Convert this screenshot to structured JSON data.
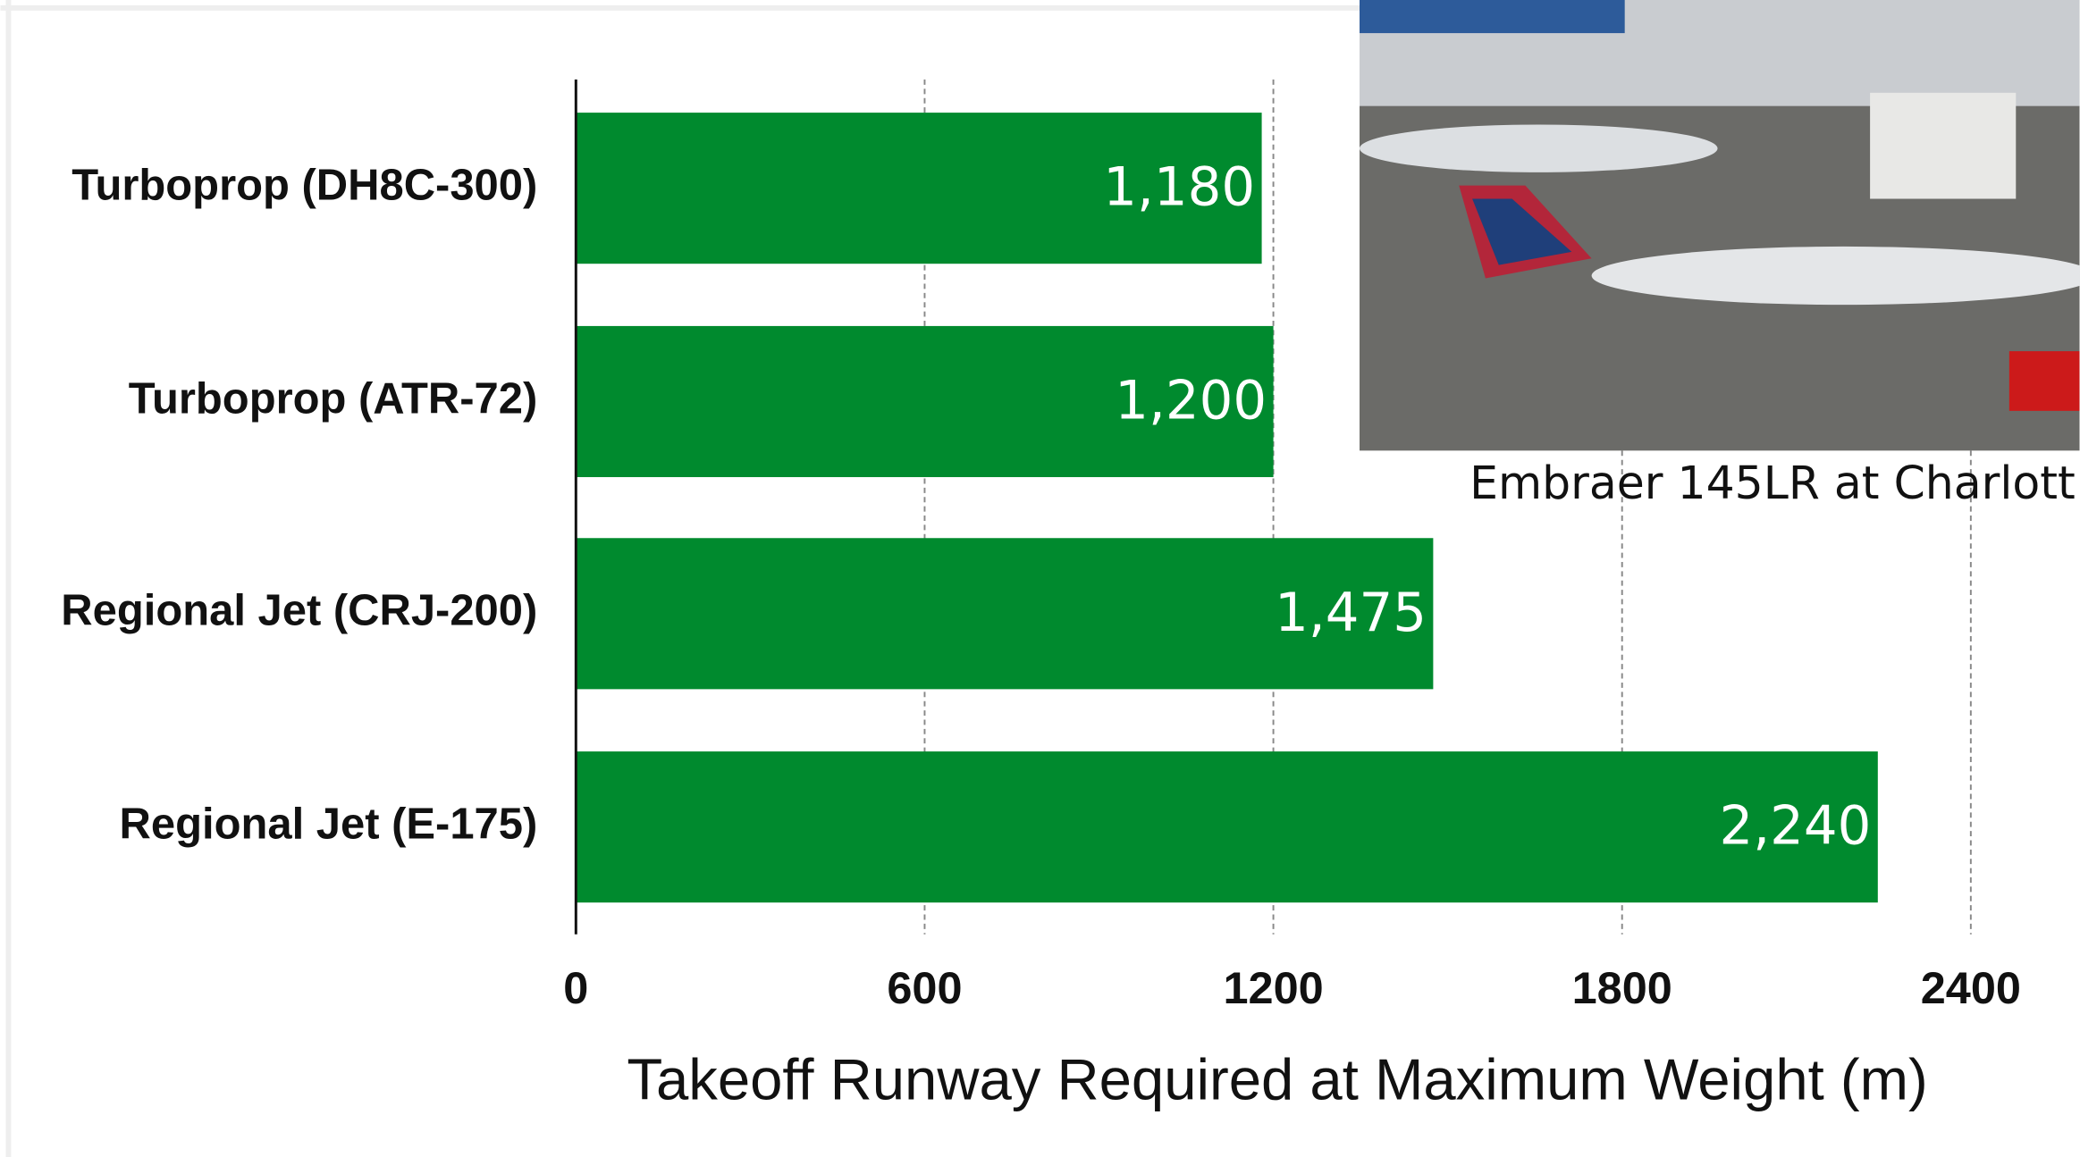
{
  "chart_data": {
    "type": "bar",
    "orientation": "horizontal",
    "categories": [
      "Turboprop (DH8C-300)",
      "Turboprop (ATR-72)",
      "Regional Jet (CRJ-200)",
      "Regional Jet (E-175)"
    ],
    "values": [
      1180,
      1200,
      1475,
      2240
    ],
    "value_labels": [
      "1,180",
      "1,200",
      "1,475",
      "2,240"
    ],
    "color": "#008a2e",
    "xlim": [
      0,
      2400
    ],
    "xticks": [
      0,
      600,
      1200,
      1800,
      2400
    ],
    "grid": true,
    "x_label": "Takeoff Runway Required at Maximum Weight (m)"
  },
  "photo": {
    "caption": "Embraer 145LR at Charlott"
  }
}
